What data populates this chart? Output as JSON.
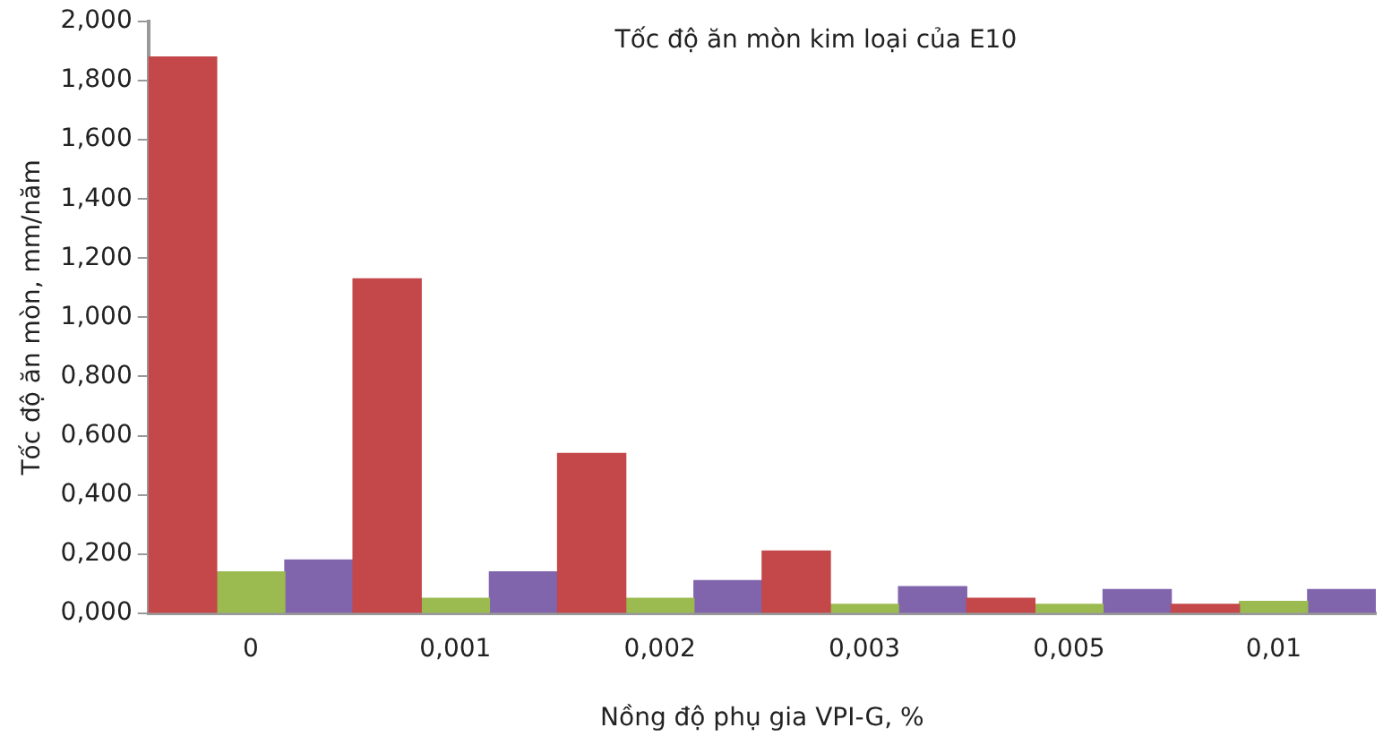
{
  "chart_data": {
    "type": "bar",
    "title": "Tốc độ ăn mòn kim loại của E10",
    "xlabel": "Nồng độ phụ gia VPI-G, %",
    "ylabel": "Tốc độ ăn mòn, mm/năm",
    "categories": [
      "0",
      "0,001",
      "0,002",
      "0,003",
      "0,005",
      "0,01"
    ],
    "series": [
      {
        "color": "#c4474a",
        "values": [
          1.88,
          1.13,
          0.54,
          0.21,
          0.05,
          0.03
        ]
      },
      {
        "color": "#9bbb50",
        "values": [
          0.14,
          0.05,
          0.05,
          0.03,
          0.03,
          0.04
        ]
      },
      {
        "color": "#8064ac",
        "values": [
          0.18,
          0.14,
          0.11,
          0.09,
          0.08,
          0.08
        ]
      }
    ],
    "ylim": [
      0,
      2
    ],
    "yticks": [
      {
        "value": 0,
        "label": "0,000"
      },
      {
        "value": 0.2,
        "label": "0,200"
      },
      {
        "value": 0.4,
        "label": "0,400"
      },
      {
        "value": 0.6,
        "label": "0,600"
      },
      {
        "value": 0.8,
        "label": "0,800"
      },
      {
        "value": 1,
        "label": "1,000"
      },
      {
        "value": 1.2,
        "label": "1,200"
      },
      {
        "value": 1.4,
        "label": "1,400"
      },
      {
        "value": 1.6,
        "label": "1,600"
      },
      {
        "value": 1.8,
        "label": "1,800"
      },
      {
        "value": 2,
        "label": "2,000"
      }
    ],
    "grid": false,
    "legend": false
  }
}
